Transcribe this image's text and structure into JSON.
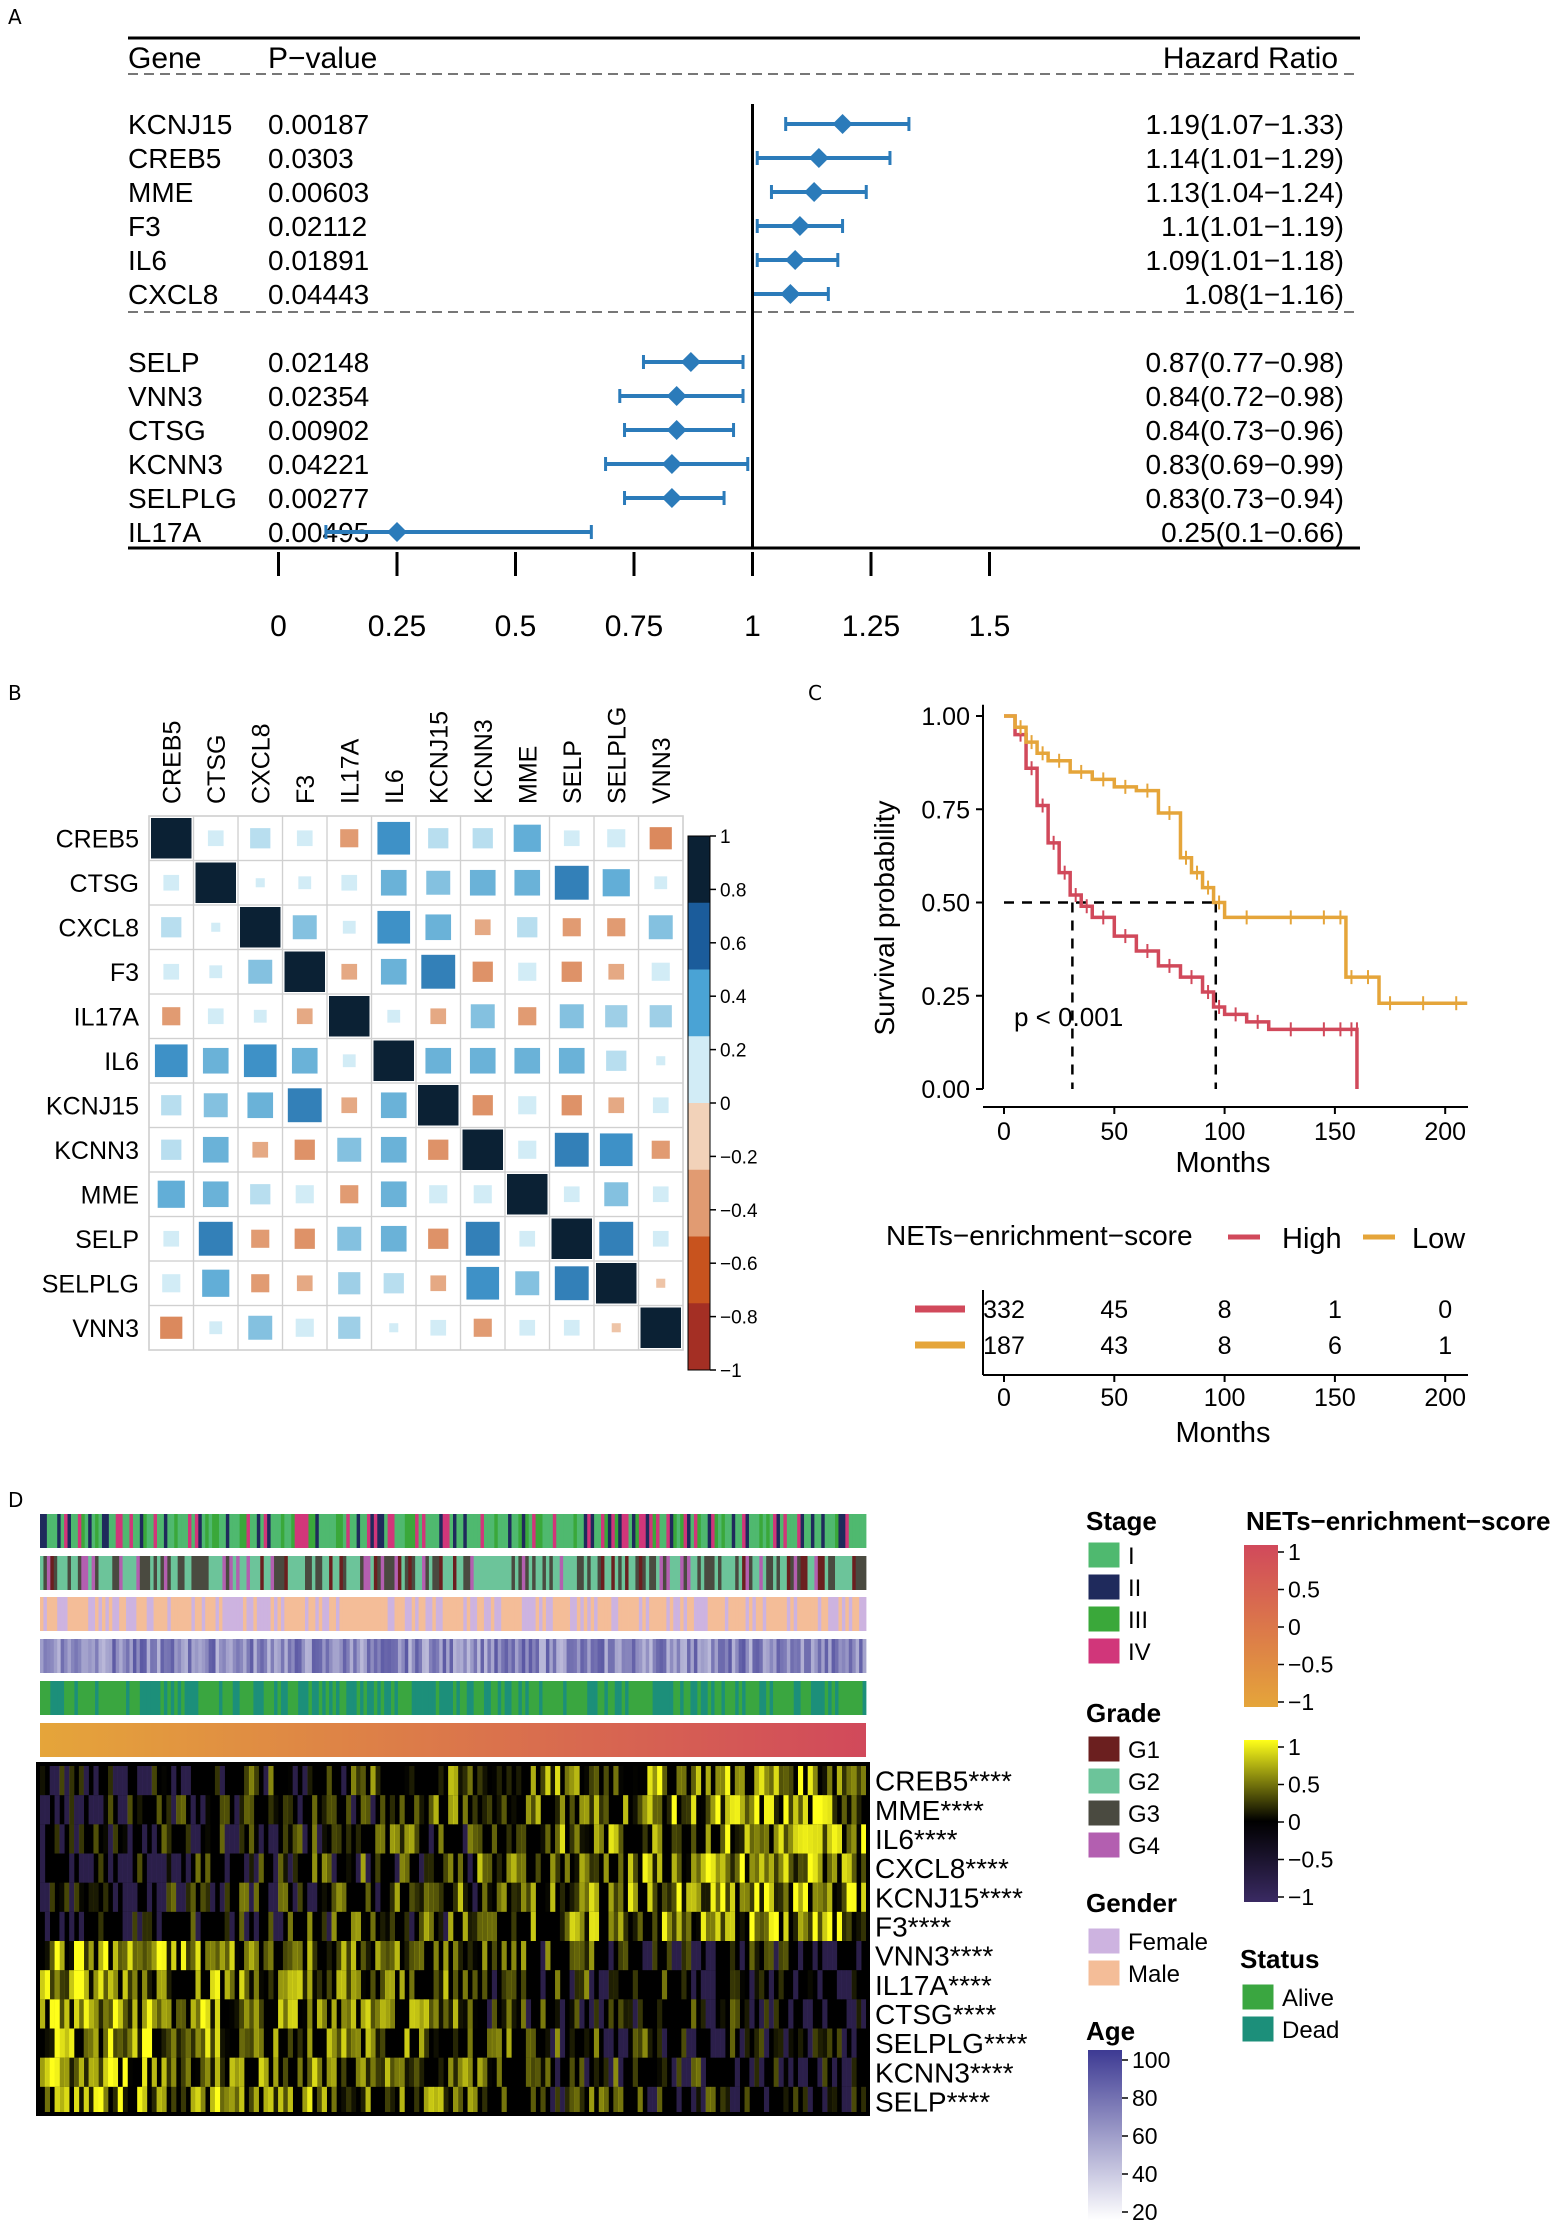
{
  "panels": {
    "a": "A",
    "b": "B",
    "c": "C",
    "d": "D"
  },
  "chart_data": [
    {
      "type": "forest",
      "panel": "A",
      "columns": {
        "gene": "Gene",
        "pvalue": "P−value",
        "hr": "Hazard Ratio"
      },
      "rows": [
        {
          "gene": "KCNJ15",
          "pvalue": "0.00187",
          "hr": 1.19,
          "lo": 1.07,
          "hi": 1.33,
          "label": "1.19(1.07−1.33)"
        },
        {
          "gene": "CREB5",
          "pvalue": "0.0303",
          "hr": 1.14,
          "lo": 1.01,
          "hi": 1.29,
          "label": "1.14(1.01−1.29)"
        },
        {
          "gene": "MME",
          "pvalue": "0.00603",
          "hr": 1.13,
          "lo": 1.04,
          "hi": 1.24,
          "label": "1.13(1.04−1.24)"
        },
        {
          "gene": "F3",
          "pvalue": "0.02112",
          "hr": 1.1,
          "lo": 1.01,
          "hi": 1.19,
          "label": "1.1(1.01−1.19)"
        },
        {
          "gene": "IL6",
          "pvalue": "0.01891",
          "hr": 1.09,
          "lo": 1.01,
          "hi": 1.18,
          "label": "1.09(1.01−1.18)"
        },
        {
          "gene": "CXCL8",
          "pvalue": "0.04443",
          "hr": 1.08,
          "lo": 1.0,
          "hi": 1.16,
          "label": "1.08(1−1.16)"
        },
        {
          "gene": "SELP",
          "pvalue": "0.02148",
          "hr": 0.87,
          "lo": 0.77,
          "hi": 0.98,
          "label": "0.87(0.77−0.98)"
        },
        {
          "gene": "VNN3",
          "pvalue": "0.02354",
          "hr": 0.84,
          "lo": 0.72,
          "hi": 0.98,
          "label": "0.84(0.72−0.98)"
        },
        {
          "gene": "CTSG",
          "pvalue": "0.00902",
          "hr": 0.84,
          "lo": 0.73,
          "hi": 0.96,
          "label": "0.84(0.73−0.96)"
        },
        {
          "gene": "KCNN3",
          "pvalue": "0.04221",
          "hr": 0.83,
          "lo": 0.69,
          "hi": 0.99,
          "label": "0.83(0.69−0.99)"
        },
        {
          "gene": "SELPLG",
          "pvalue": "0.00277",
          "hr": 0.83,
          "lo": 0.73,
          "hi": 0.94,
          "label": "0.83(0.73−0.94)"
        },
        {
          "gene": "IL17A",
          "pvalue": "0.00495",
          "hr": 0.25,
          "lo": 0.1,
          "hi": 0.66,
          "label": "0.25(0.1−0.66)"
        }
      ],
      "xticks": [
        0,
        0.25,
        0.5,
        0.75,
        1,
        1.25,
        1.5
      ],
      "xtick_labels": [
        "0",
        "0.25",
        "0.5",
        "0.75",
        "1",
        "1.25",
        "1.5"
      ],
      "xlim": [
        0,
        1.5
      ],
      "reference": 1,
      "color": "#2b7bba"
    },
    {
      "type": "heatmap",
      "panel": "B",
      "genes": [
        "CREB5",
        "CTSG",
        "CXCL8",
        "F3",
        "IL17A",
        "IL6",
        "KCNJ15",
        "KCNN3",
        "MME",
        "SELP",
        "SELPLG",
        "VNN3"
      ],
      "matrix": [
        [
          1,
          0.15,
          0.25,
          0.15,
          -0.2,
          0.65,
          0.25,
          0.25,
          0.45,
          0.15,
          0.2,
          -0.3
        ],
        [
          0.15,
          1,
          0.05,
          0.1,
          0.15,
          0.4,
          0.35,
          0.4,
          0.4,
          0.7,
          0.45,
          0.1
        ],
        [
          0.25,
          0.05,
          1,
          0.35,
          0.1,
          0.65,
          0.4,
          -0.15,
          0.25,
          -0.2,
          -0.2,
          0.35
        ],
        [
          0.15,
          0.1,
          0.35,
          1,
          -0.15,
          0.4,
          0.7,
          -0.25,
          0.2,
          -0.25,
          -0.15,
          0.2
        ],
        [
          -0.2,
          0.15,
          0.1,
          -0.15,
          1,
          0.1,
          -0.15,
          0.35,
          -0.2,
          0.35,
          0.3,
          0.3
        ],
        [
          0.65,
          0.4,
          0.65,
          0.4,
          0.1,
          1,
          0.4,
          0.4,
          0.4,
          0.4,
          0.25,
          0.05
        ],
        [
          0.25,
          0.35,
          0.4,
          0.7,
          -0.15,
          0.4,
          1,
          -0.25,
          0.2,
          -0.25,
          -0.15,
          0.15
        ],
        [
          0.25,
          0.4,
          -0.15,
          -0.25,
          0.35,
          0.4,
          -0.25,
          1,
          0.2,
          0.7,
          0.65,
          -0.2
        ],
        [
          0.45,
          0.4,
          0.25,
          0.2,
          -0.2,
          0.4,
          0.2,
          0.2,
          1,
          0.15,
          0.35,
          0.15
        ],
        [
          0.15,
          0.7,
          -0.2,
          -0.25,
          0.35,
          0.4,
          -0.25,
          0.7,
          0.15,
          1,
          0.7,
          0.15
        ],
        [
          0.2,
          0.45,
          -0.2,
          -0.15,
          0.3,
          0.25,
          -0.15,
          0.65,
          0.35,
          0.7,
          1,
          -0.05
        ],
        [
          -0.3,
          0.1,
          0.35,
          0.2,
          0.3,
          0.05,
          0.15,
          -0.2,
          0.15,
          0.15,
          -0.05,
          1
        ]
      ],
      "colorbar_ticks": [
        "1",
        "0.8",
        "0.6",
        "0.4",
        "0.2",
        "0",
        "−0.2",
        "−0.4",
        "−0.6",
        "−0.8",
        "−1"
      ],
      "colorbar_values": [
        1,
        0.8,
        0.6,
        0.4,
        0.2,
        0,
        -0.2,
        -0.4,
        -0.6,
        -0.8,
        -1
      ],
      "colorbar_colors": [
        "#0b2134",
        "#1b5c9b",
        "#4aa3d5",
        "#d2ecf6",
        "#f2d2b9",
        "#e19b72",
        "#c8531e",
        "#a42f24"
      ]
    },
    {
      "type": "line",
      "panel": "C",
      "subtype": "kaplan-meier",
      "ylabel": "Survival probability",
      "xlabel": "Months",
      "yticks": [
        "1.00",
        "0.75",
        "0.50",
        "0.25",
        "0.00"
      ],
      "ytick_values": [
        1.0,
        0.75,
        0.5,
        0.25,
        0.0
      ],
      "xticks": [
        "0",
        "50",
        "100",
        "150",
        "200"
      ],
      "xtick_values": [
        0,
        50,
        100,
        150,
        200
      ],
      "xlim": [
        0,
        210
      ],
      "ylim": [
        0,
        1
      ],
      "pvalue_text": "p < 0.001",
      "median_survival": {
        "High": 31,
        "Low": 96
      },
      "legend_title": "NETs−enrichment−score",
      "series": [
        {
          "name": "High",
          "color": "#d1495b",
          "x": [
            0,
            5,
            10,
            15,
            20,
            25,
            30,
            35,
            40,
            50,
            60,
            70,
            80,
            90,
            95,
            100,
            110,
            120,
            140,
            150,
            155,
            160,
            160
          ],
          "y": [
            1.0,
            0.95,
            0.86,
            0.76,
            0.66,
            0.58,
            0.52,
            0.49,
            0.46,
            0.41,
            0.37,
            0.33,
            0.3,
            0.26,
            0.22,
            0.2,
            0.18,
            0.16,
            0.16,
            0.16,
            0.16,
            0.16,
            0.0
          ]
        },
        {
          "name": "Low",
          "color": "#e5a53a",
          "x": [
            0,
            5,
            10,
            15,
            20,
            30,
            40,
            50,
            60,
            70,
            80,
            85,
            90,
            95,
            100,
            120,
            140,
            150,
            155,
            160,
            170,
            180,
            200,
            210
          ],
          "y": [
            1.0,
            0.97,
            0.93,
            0.9,
            0.88,
            0.85,
            0.83,
            0.81,
            0.8,
            0.74,
            0.62,
            0.58,
            0.54,
            0.5,
            0.46,
            0.46,
            0.46,
            0.46,
            0.3,
            0.3,
            0.23,
            0.23,
            0.23,
            0.23
          ]
        }
      ],
      "risk_table": {
        "xlabel": "Months",
        "xticks": [
          "0",
          "50",
          "100",
          "150",
          "200"
        ],
        "rows": [
          {
            "name": "High",
            "color": "#d1495b",
            "values": [
              "332",
              "45",
              "8",
              "1",
              "0"
            ]
          },
          {
            "name": "Low",
            "color": "#e5a53a",
            "values": [
              "187",
              "43",
              "8",
              "6",
              "1"
            ]
          }
        ]
      }
    },
    {
      "type": "heatmap",
      "panel": "D",
      "genes": [
        "CREB5****",
        "MME****",
        "IL6****",
        "CXCL8****",
        "KCNJ15****",
        "F3****",
        "VNN3****",
        "IL17A****",
        "CTSG****",
        "SELPLG****",
        "KCNN3****",
        "SELP****"
      ],
      "legends": {
        "stage": {
          "title": "Stage",
          "items": [
            {
              "label": "I",
              "color": "#4fb96f"
            },
            {
              "label": "II",
              "color": "#1f2a5c"
            },
            {
              "label": "III",
              "color": "#3aa83a"
            },
            {
              "label": "IV",
              "color": "#d1367a"
            }
          ]
        },
        "grade": {
          "title": "Grade",
          "items": [
            {
              "label": "G1",
              "color": "#6b1f1f"
            },
            {
              "label": "G2",
              "color": "#6cc49a"
            },
            {
              "label": "G3",
              "color": "#4a4a40"
            },
            {
              "label": "G4",
              "color": "#b35fb0"
            }
          ]
        },
        "gender": {
          "title": "Gender",
          "items": [
            {
              "label": "Female",
              "color": "#cdb3e0"
            },
            {
              "label": "Male",
              "color": "#f4bd98"
            }
          ]
        },
        "age": {
          "title": "Age",
          "ticks": [
            "100",
            "80",
            "60",
            "40",
            "20"
          ],
          "color_high": "#3d3a93",
          "color_low": "#ffffff"
        },
        "score": {
          "title": "NETs−enrichment−score",
          "ticks": [
            "1",
            "0.5",
            "0",
            "−0.5",
            "−1"
          ],
          "color_high": "#d1495b",
          "color_low": "#e5a53a"
        },
        "expression": {
          "ticks": [
            "1",
            "0.5",
            "0",
            "−0.5",
            "−1"
          ],
          "color_high": "#ffff1a",
          "color_mid": "#000000",
          "color_low": "#3a2a63"
        },
        "status": {
          "title": "Status",
          "items": [
            {
              "label": "Alive",
              "color": "#3aa640"
            },
            {
              "label": "Dead",
              "color": "#1c8f7a"
            }
          ]
        }
      }
    }
  ]
}
